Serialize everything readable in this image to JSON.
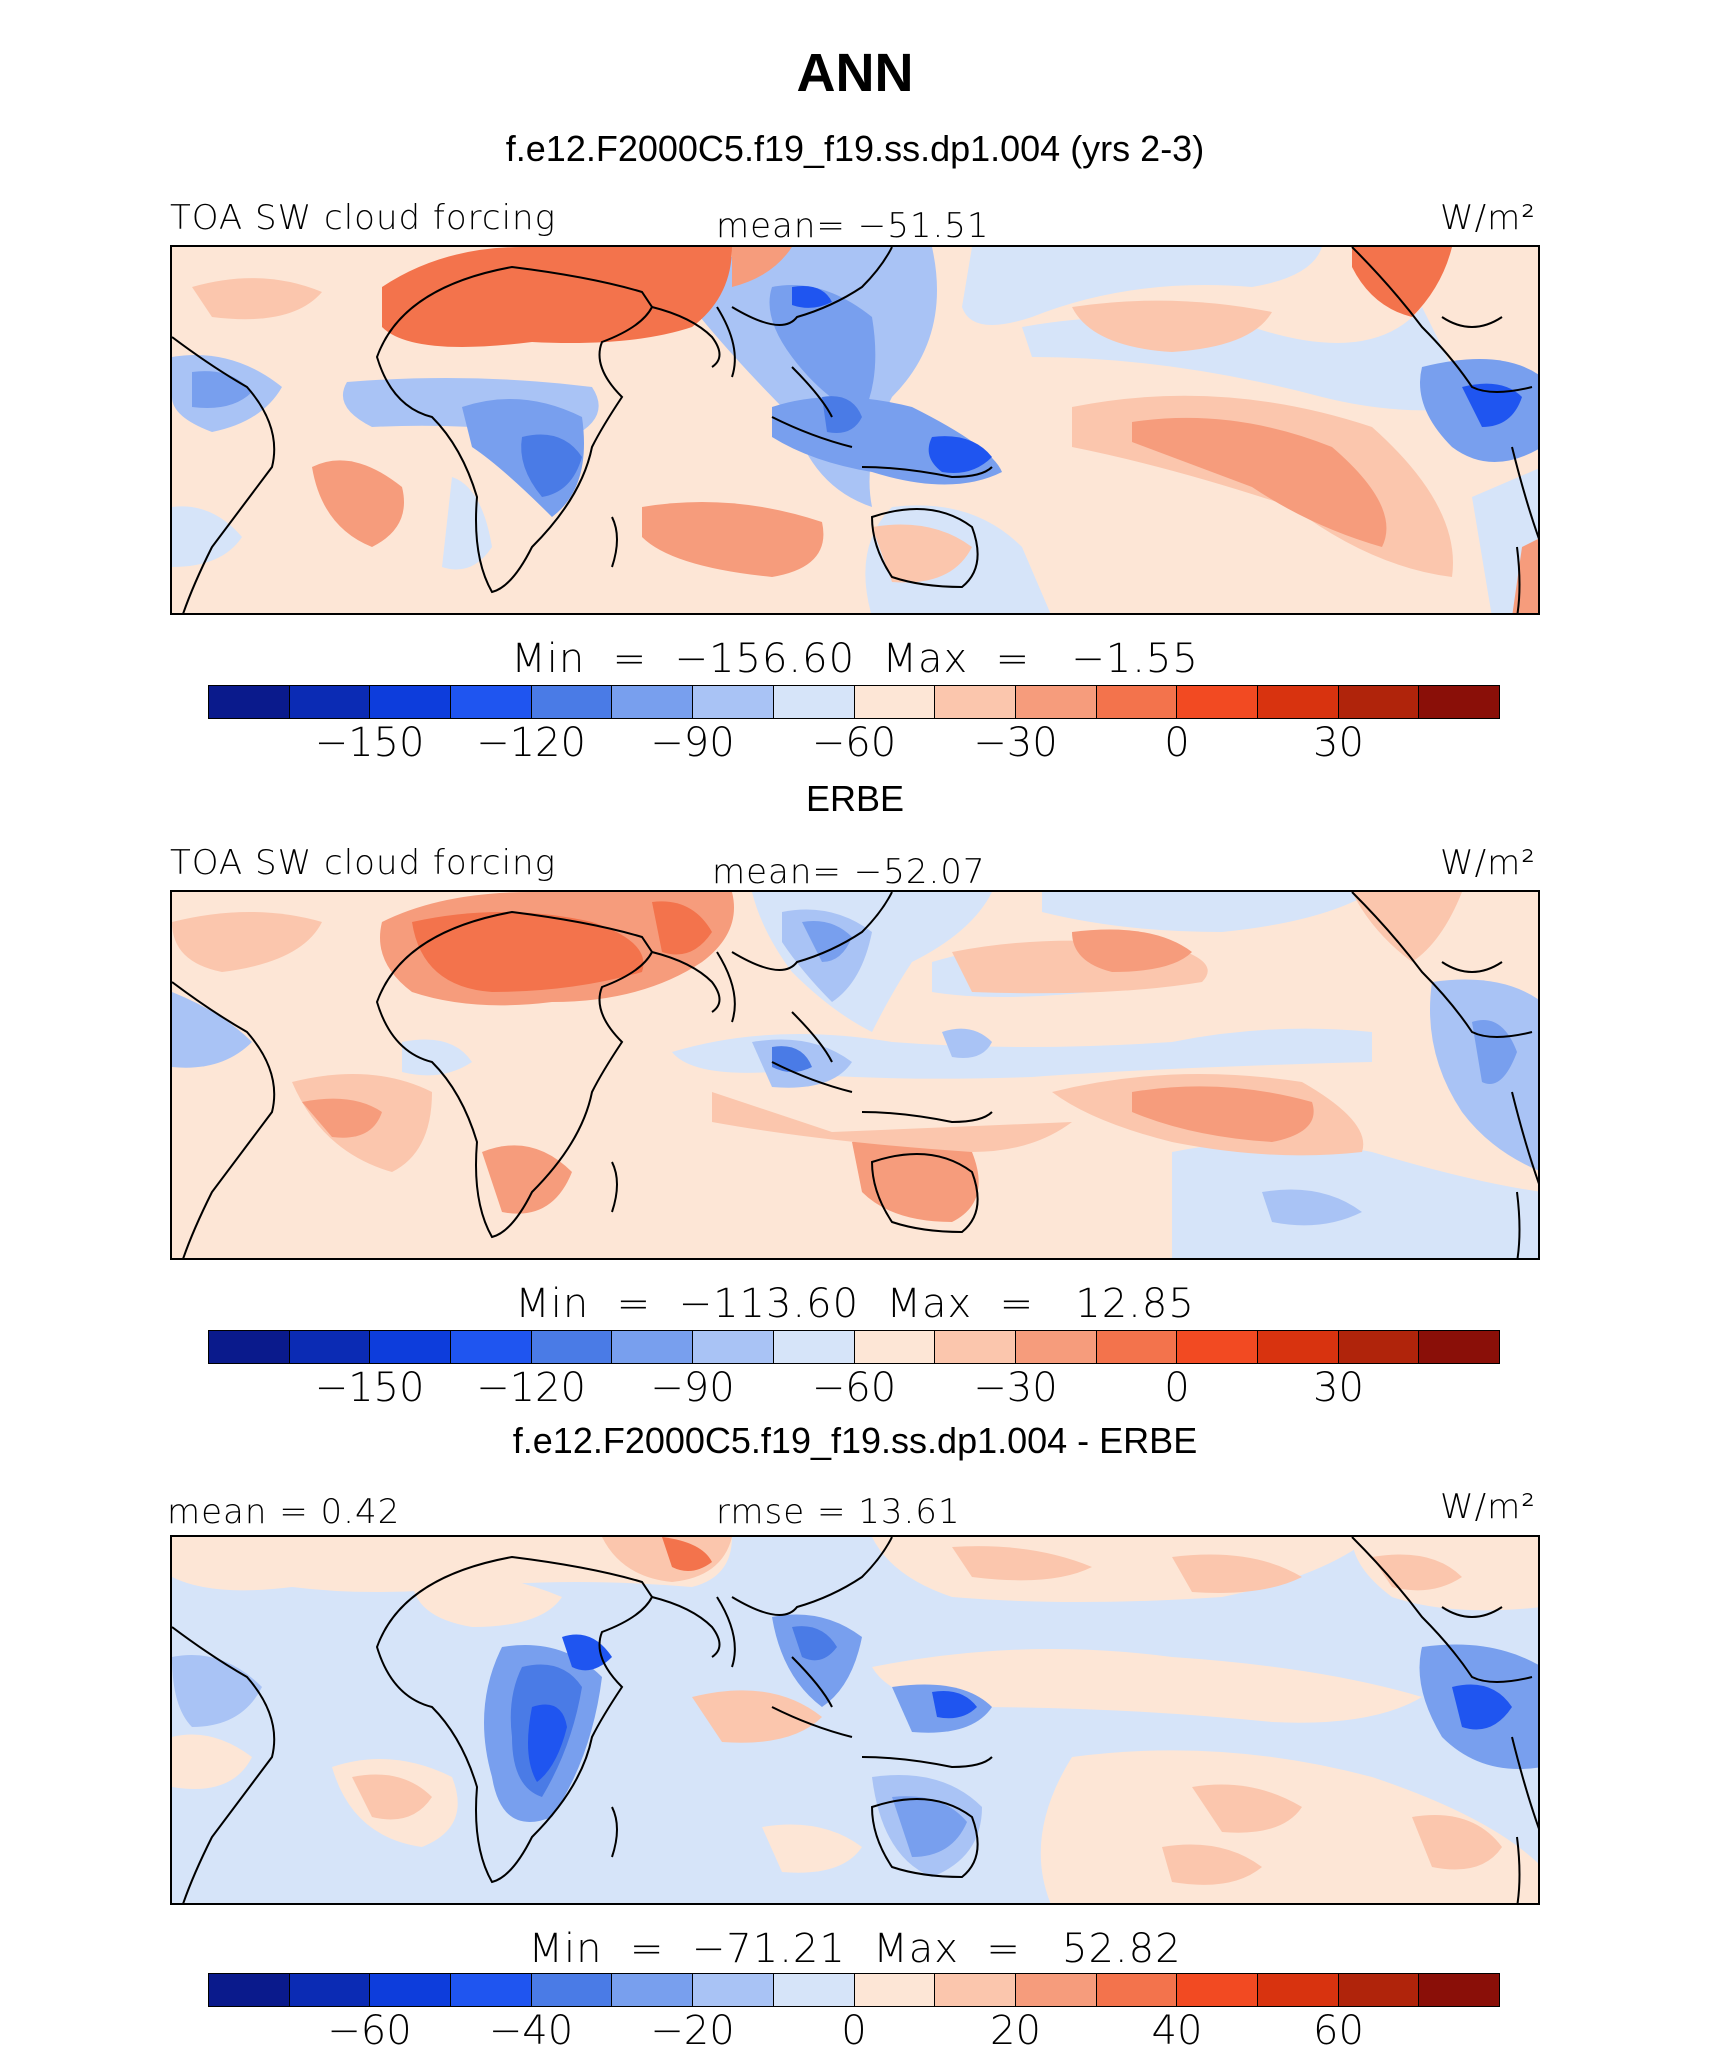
{
  "figure": {
    "title": "ANN"
  },
  "panels": [
    {
      "title": "f.e12.F2000C5.f19_f19.ss.dp1.004 (yrs 2-3)",
      "left_label": "TOA SW cloud forcing",
      "center_label": "mean= −51.51",
      "units": "W/m²",
      "minmax": "Min  =  −156.60  Max  =   −1.55",
      "ticks": [
        "−150",
        "−120",
        "−90",
        "−60",
        "−30",
        "0",
        "30"
      ]
    },
    {
      "title": "ERBE",
      "left_label": "TOA SW cloud forcing",
      "center_label": "mean= −52.07",
      "units": "W/m²",
      "minmax": "Min  =  −113.60  Max  =   12.85",
      "ticks": [
        "−150",
        "−120",
        "−90",
        "−60",
        "−30",
        "0",
        "30"
      ]
    },
    {
      "title": "f.e12.F2000C5.f19_f19.ss.dp1.004 - ERBE",
      "left_label": "mean =    0.42",
      "center_label": "rmse  =   13.61",
      "units": "W/m²",
      "minmax": "Min  =  −71.21  Max  =   52.82",
      "ticks": [
        "−60",
        "−40",
        "−20",
        "0",
        "20",
        "40",
        "60"
      ]
    }
  ],
  "colors": {
    "colorbar": [
      "#0a1a8c",
      "#0b2bb4",
      "#0d3ddc",
      "#1f55f0",
      "#4a7be6",
      "#789fee",
      "#a9c3f5",
      "#d6e4f9",
      "#fde6d6",
      "#fbc6ad",
      "#f69c7c",
      "#f3734c",
      "#f24a22",
      "#d8330f",
      "#b0240b",
      "#8a0f08"
    ],
    "coastline": "#000000"
  }
}
